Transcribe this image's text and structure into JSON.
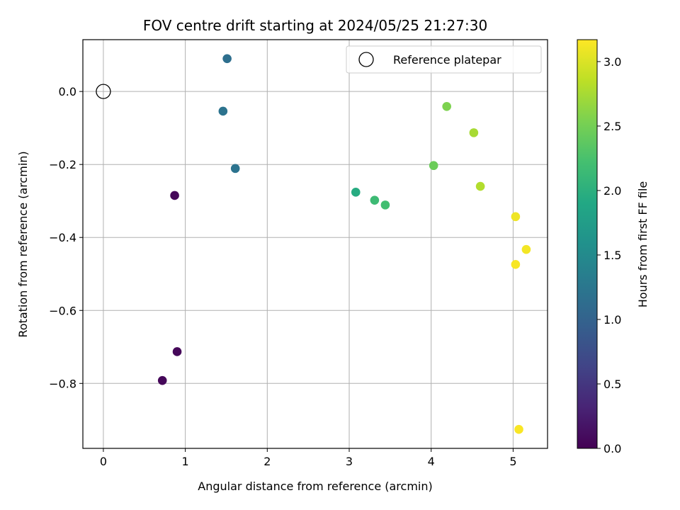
{
  "chart_data": {
    "type": "scatter",
    "title": "FOV centre drift starting at 2024/05/25 21:27:30",
    "xlabel": "Angular distance from reference (arcmin)",
    "ylabel": "Rotation from reference (arcmin)",
    "xlim": [
      -0.25,
      5.42
    ],
    "ylim": [
      -0.978,
      0.142
    ],
    "x_ticks": [
      0,
      1,
      2,
      3,
      4,
      5
    ],
    "x_tick_labels": [
      "0",
      "1",
      "2",
      "3",
      "4",
      "5"
    ],
    "y_ticks": [
      0.0,
      -0.2,
      -0.4,
      -0.6,
      -0.8
    ],
    "y_tick_labels": [
      "0.0",
      "−0.2",
      "−0.4",
      "−0.6",
      "−0.8"
    ],
    "grid": true,
    "legend": {
      "position": "top-right",
      "entries": [
        {
          "label": "Reference platepar",
          "marker": "hollow-circle",
          "color": "#000000"
        }
      ]
    },
    "reference_point": {
      "x": 0.0,
      "y": 0.0
    },
    "colorbar": {
      "label": "Hours from first FF file",
      "colormap": "viridis",
      "range": [
        0.0,
        3.17
      ],
      "ticks": [
        0.0,
        0.5,
        1.0,
        1.5,
        2.0,
        2.5,
        3.0
      ],
      "tick_labels": [
        "0.0",
        "0.5",
        "1.0",
        "1.5",
        "2.0",
        "2.5",
        "3.0"
      ]
    },
    "series": [
      {
        "points": [
          {
            "x": 0.87,
            "y": -0.285,
            "hours": 0.05
          },
          {
            "x": 0.9,
            "y": -0.713,
            "hours": 0.05
          },
          {
            "x": 0.72,
            "y": -0.792,
            "hours": 0.05
          },
          {
            "x": 1.51,
            "y": 0.09,
            "hours": 1.15
          },
          {
            "x": 1.46,
            "y": -0.054,
            "hours": 1.2
          },
          {
            "x": 1.61,
            "y": -0.211,
            "hours": 1.2
          },
          {
            "x": 3.08,
            "y": -0.276,
            "hours": 1.95
          },
          {
            "x": 3.31,
            "y": -0.298,
            "hours": 2.15
          },
          {
            "x": 3.44,
            "y": -0.311,
            "hours": 2.2
          },
          {
            "x": 4.03,
            "y": -0.203,
            "hours": 2.45
          },
          {
            "x": 4.19,
            "y": -0.041,
            "hours": 2.55
          },
          {
            "x": 4.52,
            "y": -0.113,
            "hours": 2.75
          },
          {
            "x": 4.6,
            "y": -0.26,
            "hours": 2.8
          },
          {
            "x": 5.03,
            "y": -0.343,
            "hours": 3.1
          },
          {
            "x": 5.16,
            "y": -0.433,
            "hours": 3.12
          },
          {
            "x": 5.03,
            "y": -0.474,
            "hours": 3.14
          },
          {
            "x": 5.07,
            "y": -0.926,
            "hours": 3.15
          }
        ]
      }
    ]
  }
}
